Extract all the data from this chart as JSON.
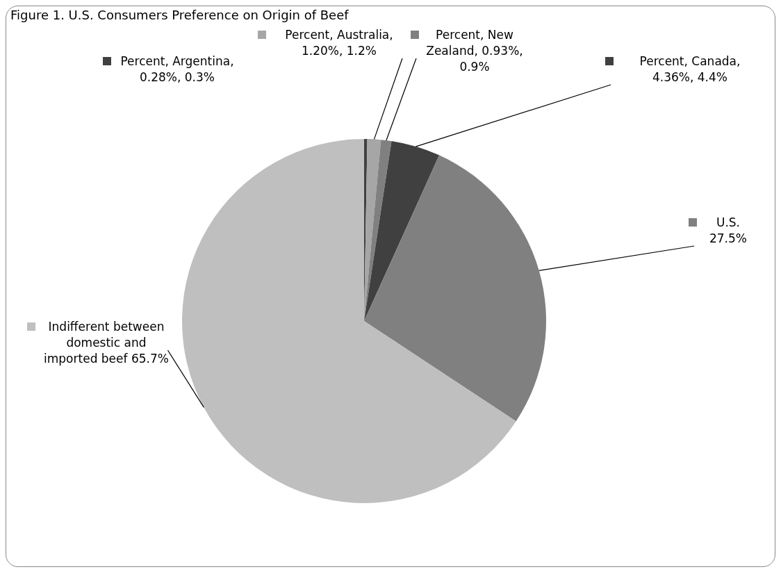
{
  "chart_data": {
    "type": "pie",
    "title": "Figure 1. U.S. Consumers Preference on Origin of Beef",
    "categories": [
      "Percent, Argentina, 0.28%, 0.3%",
      "Percent, Australia, 1.20%, 1.2%",
      "Percent, New Zealand, 0.93%, 0.9%",
      "Percent, Canada, 4.36%, 4.4%",
      "U.S.",
      "Indifferent between domestic and imported beef"
    ],
    "values": [
      0.28,
      1.2,
      0.93,
      4.36,
      27.5,
      65.7
    ],
    "colors": [
      "#404040",
      "#a6a6a6",
      "#808080",
      "#404040",
      "#808080",
      "#bfbfbf"
    ],
    "value_labels": [
      null,
      null,
      null,
      null,
      "27.5%",
      "65.7%"
    ],
    "legend": "top"
  }
}
